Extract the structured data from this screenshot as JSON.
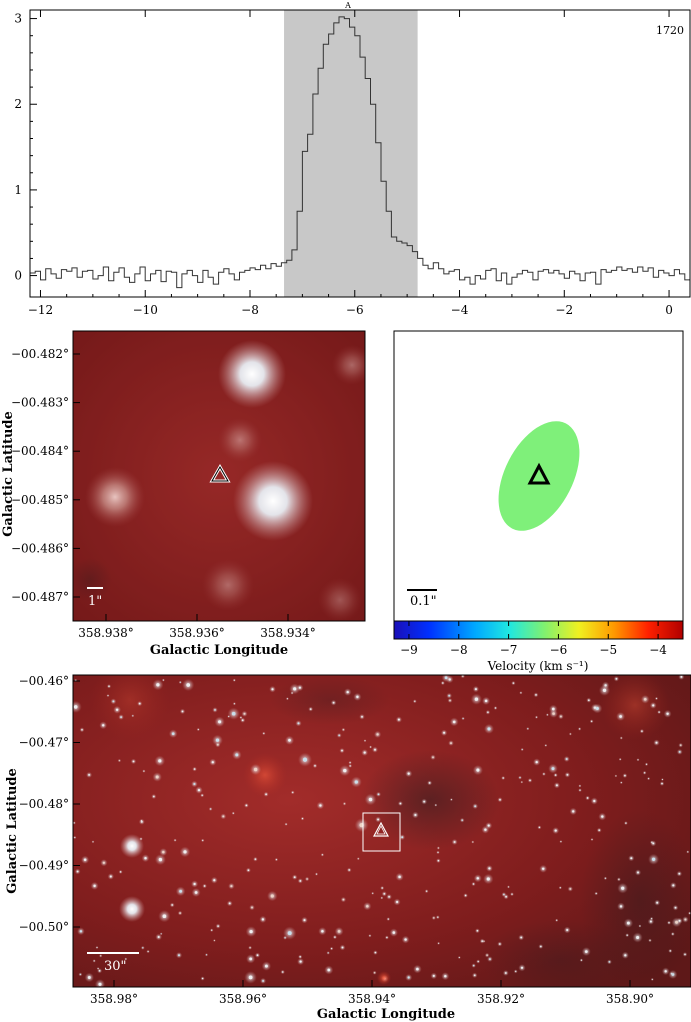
{
  "spectrum": {
    "label": "1720",
    "marker": "A",
    "chart_data": {
      "type": "line",
      "step": true,
      "xlim": [
        -12.2,
        0.4
      ],
      "ylim": [
        -0.25,
        3.1
      ],
      "xticks": [
        -12,
        -10,
        -8,
        -6,
        -4,
        -2,
        0
      ],
      "yticks": [
        0,
        1,
        2,
        3
      ],
      "shaded_range": [
        -7.35,
        -4.8
      ],
      "x_start": -12.2,
      "x_step": 0.1,
      "values": [
        0.03,
        0.05,
        -0.05,
        0.08,
        0.02,
        -0.03,
        0.07,
        0.05,
        0.09,
        -0.02,
        0.05,
        0.06,
        -0.04,
        0.0,
        0.1,
        -0.06,
        0.04,
        0.09,
        -0.02,
        -0.08,
        0.02,
        0.1,
        -0.06,
        0.02,
        0.06,
        -0.07,
        0.05,
        0.04,
        -0.14,
        0.02,
        0.06,
        0.0,
        -0.08,
        0.06,
        -0.02,
        -0.1,
        0.04,
        0.08,
        0.02,
        -0.05,
        0.04,
        0.06,
        0.09,
        0.07,
        0.12,
        0.08,
        0.14,
        0.11,
        0.15,
        0.18,
        0.3,
        0.75,
        1.45,
        1.65,
        2.12,
        2.42,
        2.7,
        2.82,
        2.95,
        3.02,
        3.0,
        2.9,
        2.8,
        2.55,
        2.3,
        2.0,
        1.55,
        1.1,
        0.75,
        0.45,
        0.4,
        0.38,
        0.35,
        0.28,
        0.2,
        0.12,
        0.08,
        0.15,
        0.08,
        0.02,
        0.05,
        0.07,
        -0.05,
        -0.02,
        -0.1,
        0.0,
        -0.04,
        0.06,
        0.08,
        -0.06,
        0.03,
        -0.1,
        -0.02,
        0.02,
        0.06,
        0.04,
        -0.05,
        0.05,
        0.07,
        0.03,
        0.06,
        0.02,
        -0.03,
        0.05,
        0.02,
        -0.06,
        0.03,
        0.04,
        -0.1,
        0.07,
        0.04,
        0.06,
        0.1,
        0.06,
        0.08,
        0.04,
        0.1,
        0.05,
        0.09,
        -0.02,
        0.06,
        0.03,
        0.0,
        0.07,
        0.02,
        -0.05
      ]
    }
  },
  "zoom_panel": {
    "xticks": [
      "358.938°",
      "358.936°",
      "358.934°"
    ],
    "yticks": [
      "−00.482°",
      "−00.483°",
      "−00.484°",
      "−00.485°",
      "−00.486°",
      "−00.487°"
    ],
    "xlabel": "Galactic Longitude",
    "ylabel": "Galactic Latitude",
    "scale_label": "1\""
  },
  "velocity_panel": {
    "scale_label": "0.1\"",
    "colorbar_label": "Velocity (km s⁻¹)",
    "colorbar_ticks": [
      "−9",
      "−8",
      "−7",
      "−6",
      "−5",
      "−4"
    ],
    "colorbar_range": [
      -9.3,
      -3.5
    ],
    "spot_color": "#7ff07a"
  },
  "wide_panel": {
    "xticks": [
      "358.98°",
      "358.96°",
      "358.94°",
      "358.92°",
      "358.90°"
    ],
    "yticks": [
      "−00.46°",
      "−00.47°",
      "−00.48°",
      "−00.49°",
      "−00.50°"
    ],
    "xlabel": "Galactic Longitude",
    "ylabel": "Galactic Latitude",
    "scale_label": "30\""
  }
}
